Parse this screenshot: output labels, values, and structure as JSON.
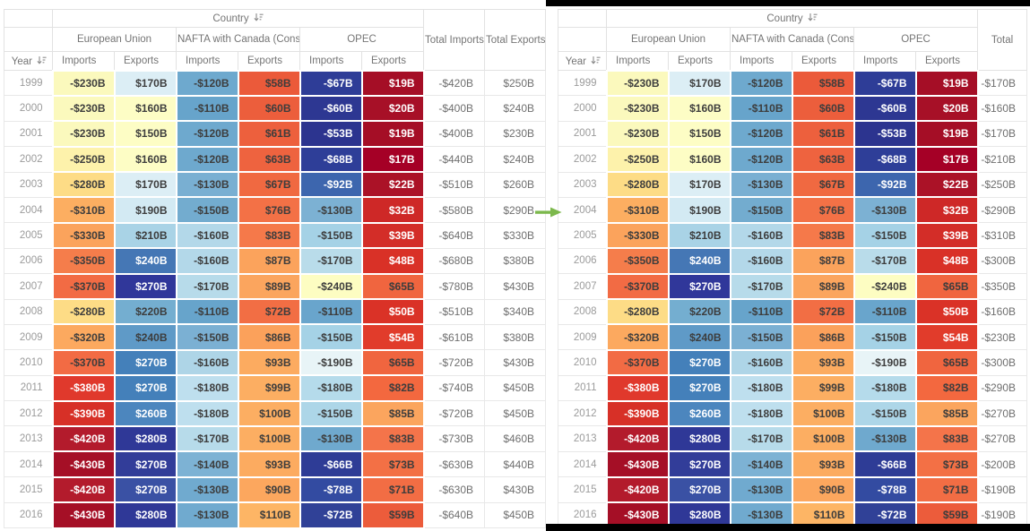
{
  "header": {
    "country_label": "Country",
    "year_label": "Year",
    "groups": [
      "European Union",
      "NAFTA with Canada (Consump)",
      "OPEC"
    ],
    "measures": [
      "Imports",
      "Exports"
    ],
    "left_total_columns": [
      "Total Imports",
      "Total Exports"
    ],
    "right_total_column": "Total"
  },
  "arrow_color": "#7cb84c",
  "rows": [
    {
      "year": "1999",
      "cells": [
        {
          "v": "-$230B",
          "bg": "#fbf9bd",
          "w": 0
        },
        {
          "v": "$170B",
          "bg": "#dceef5",
          "w": 0
        },
        {
          "v": "-$120B",
          "bg": "#6ea9ce",
          "w": 0
        },
        {
          "v": "$58B",
          "bg": "#eb5a3a",
          "w": 0
        },
        {
          "v": "-$67B",
          "bg": "#2e3d97",
          "w": 1
        },
        {
          "v": "$19B",
          "bg": "#a50e26",
          "w": 1
        }
      ],
      "left_totals": [
        "-$420B",
        "$250B"
      ],
      "right_total": "-$170B"
    },
    {
      "year": "2000",
      "cells": [
        {
          "v": "-$230B",
          "bg": "#fbf9bd",
          "w": 0
        },
        {
          "v": "$160B",
          "bg": "#fdfdc5",
          "w": 0
        },
        {
          "v": "-$110B",
          "bg": "#67a4cb",
          "w": 0
        },
        {
          "v": "$60B",
          "bg": "#ec5e3c",
          "w": 0
        },
        {
          "v": "-$60B",
          "bg": "#2d3792",
          "w": 1
        },
        {
          "v": "$20B",
          "bg": "#a71027",
          "w": 1
        }
      ],
      "left_totals": [
        "-$400B",
        "$240B"
      ],
      "right_total": "-$160B"
    },
    {
      "year": "2001",
      "cells": [
        {
          "v": "-$230B",
          "bg": "#fbf9bd",
          "w": 0
        },
        {
          "v": "$150B",
          "bg": "#fdfdc5",
          "w": 0
        },
        {
          "v": "-$120B",
          "bg": "#6ea9ce",
          "w": 0
        },
        {
          "v": "$61B",
          "bg": "#ed603d",
          "w": 0
        },
        {
          "v": "-$53B",
          "bg": "#2c348f",
          "w": 1
        },
        {
          "v": "$19B",
          "bg": "#a50e26",
          "w": 1
        }
      ],
      "left_totals": [
        "-$400B",
        "$230B"
      ],
      "right_total": "-$170B"
    },
    {
      "year": "2002",
      "cells": [
        {
          "v": "-$250B",
          "bg": "#fdf2ab",
          "w": 0
        },
        {
          "v": "$160B",
          "bg": "#fdfdc5",
          "w": 0
        },
        {
          "v": "-$120B",
          "bg": "#6ea9ce",
          "w": 0
        },
        {
          "v": "$63B",
          "bg": "#ee633f",
          "w": 0
        },
        {
          "v": "-$68B",
          "bg": "#2e3e98",
          "w": 1
        },
        {
          "v": "$17B",
          "bg": "#a50026",
          "w": 1
        }
      ],
      "left_totals": [
        "-$440B",
        "$240B"
      ],
      "right_total": "-$210B"
    },
    {
      "year": "2003",
      "cells": [
        {
          "v": "-$280B",
          "bg": "#fddc86",
          "w": 0
        },
        {
          "v": "$170B",
          "bg": "#dceef5",
          "w": 0
        },
        {
          "v": "-$130B",
          "bg": "#79afd2",
          "w": 0
        },
        {
          "v": "$67B",
          "bg": "#f06941",
          "w": 0
        },
        {
          "v": "-$92B",
          "bg": "#3d66ae",
          "w": 1
        },
        {
          "v": "$22B",
          "bg": "#ab1227",
          "w": 1
        }
      ],
      "left_totals": [
        "-$510B",
        "$260B"
      ],
      "right_total": "-$250B"
    },
    {
      "year": "2004",
      "cells": [
        {
          "v": "-$310B",
          "bg": "#fcae61",
          "w": 0
        },
        {
          "v": "$190B",
          "bg": "#d3eaf3",
          "w": 0
        },
        {
          "v": "-$150B",
          "bg": "#73accf",
          "w": 0
        },
        {
          "v": "$76B",
          "bg": "#f37146",
          "w": 0
        },
        {
          "v": "-$130B",
          "bg": "#7cb1d3",
          "w": 0
        },
        {
          "v": "$32B",
          "bg": "#ce2827",
          "w": 1
        }
      ],
      "left_totals": [
        "-$580B",
        "$290B"
      ],
      "right_total": "-$290B"
    },
    {
      "year": "2005",
      "cells": [
        {
          "v": "-$330B",
          "bg": "#fba35c",
          "w": 0
        },
        {
          "v": "$210B",
          "bg": "#a9d3e6",
          "w": 0
        },
        {
          "v": "-$160B",
          "bg": "#b3d8e9",
          "w": 0
        },
        {
          "v": "$83B",
          "bg": "#f5794a",
          "w": 0
        },
        {
          "v": "-$150B",
          "bg": "#a5d2e6",
          "w": 0
        },
        {
          "v": "$39B",
          "bg": "#d32d28",
          "w": 1
        }
      ],
      "left_totals": [
        "-$640B",
        "$330B"
      ],
      "right_total": "-$310B"
    },
    {
      "year": "2006",
      "cells": [
        {
          "v": "-$350B",
          "bg": "#f57d4b",
          "w": 0
        },
        {
          "v": "$240B",
          "bg": "#4577b5",
          "w": 1
        },
        {
          "v": "-$160B",
          "bg": "#b3d8e9",
          "w": 0
        },
        {
          "v": "$87B",
          "bg": "#fba35c",
          "w": 0
        },
        {
          "v": "-$170B",
          "bg": "#b9dcea",
          "w": 0
        },
        {
          "v": "$48B",
          "bg": "#d93127",
          "w": 1
        }
      ],
      "left_totals": [
        "-$680B",
        "$380B"
      ],
      "right_total": "-$300B"
    },
    {
      "year": "2007",
      "cells": [
        {
          "v": "-$370B",
          "bg": "#f26b44",
          "w": 0
        },
        {
          "v": "$270B",
          "bg": "#30379a",
          "w": 1
        },
        {
          "v": "-$170B",
          "bg": "#b7dbea",
          "w": 0
        },
        {
          "v": "$89B",
          "bg": "#fba55e",
          "w": 0
        },
        {
          "v": "-$240B",
          "bg": "#fdfdc2",
          "w": 0
        },
        {
          "v": "$65B",
          "bg": "#f0653f",
          "w": 0
        }
      ],
      "left_totals": [
        "-$780B",
        "$430B"
      ],
      "right_total": "-$350B"
    },
    {
      "year": "2008",
      "cells": [
        {
          "v": "-$280B",
          "bg": "#fddc86",
          "w": 0
        },
        {
          "v": "$220B",
          "bg": "#74aed0",
          "w": 0
        },
        {
          "v": "-$110B",
          "bg": "#67a4cb",
          "w": 0
        },
        {
          "v": "$72B",
          "bg": "#f26e44",
          "w": 0
        },
        {
          "v": "-$110B",
          "bg": "#69a5cc",
          "w": 0
        },
        {
          "v": "$50B",
          "bg": "#da3227",
          "w": 1
        }
      ],
      "left_totals": [
        "-$510B",
        "$340B"
      ],
      "right_total": "-$160B"
    },
    {
      "year": "2009",
      "cells": [
        {
          "v": "-$320B",
          "bg": "#fca95f",
          "w": 0
        },
        {
          "v": "$240B",
          "bg": "#5f9ac7",
          "w": 0
        },
        {
          "v": "-$150B",
          "bg": "#7bb0d3",
          "w": 0
        },
        {
          "v": "$86B",
          "bg": "#fba15b",
          "w": 0
        },
        {
          "v": "-$150B",
          "bg": "#a5d2e6",
          "w": 0
        },
        {
          "v": "$54B",
          "bg": "#e13c2b",
          "w": 1
        }
      ],
      "left_totals": [
        "-$610B",
        "$380B"
      ],
      "right_total": "-$230B"
    },
    {
      "year": "2010",
      "cells": [
        {
          "v": "-$370B",
          "bg": "#f26b44",
          "w": 0
        },
        {
          "v": "$270B",
          "bg": "#4480ba",
          "w": 1
        },
        {
          "v": "-$160B",
          "bg": "#aed5e7",
          "w": 0
        },
        {
          "v": "$93B",
          "bg": "#fcab60",
          "w": 0
        },
        {
          "v": "-$190B",
          "bg": "#e8f4f7",
          "w": 0
        },
        {
          "v": "$65B",
          "bg": "#f0653f",
          "w": 0
        }
      ],
      "left_totals": [
        "-$720B",
        "$430B"
      ],
      "right_total": "-$300B"
    },
    {
      "year": "2011",
      "cells": [
        {
          "v": "-$380B",
          "bg": "#e0392c",
          "w": 1
        },
        {
          "v": "$270B",
          "bg": "#4480ba",
          "w": 1
        },
        {
          "v": "-$180B",
          "bg": "#bedfee",
          "w": 0
        },
        {
          "v": "$99B",
          "bg": "#fcae62",
          "w": 0
        },
        {
          "v": "-$180B",
          "bg": "#b5dbeb",
          "w": 0
        },
        {
          "v": "$82B",
          "bg": "#f3683f",
          "w": 0
        }
      ],
      "left_totals": [
        "-$740B",
        "$450B"
      ],
      "right_total": "-$290B"
    },
    {
      "year": "2012",
      "cells": [
        {
          "v": "-$390B",
          "bg": "#d73027",
          "w": 1
        },
        {
          "v": "$260B",
          "bg": "#4c86be",
          "w": 1
        },
        {
          "v": "-$180B",
          "bg": "#bedfee",
          "w": 0
        },
        {
          "v": "$100B",
          "bg": "#fcae62",
          "w": 0
        },
        {
          "v": "-$150B",
          "bg": "#add6e8",
          "w": 0
        },
        {
          "v": "$85B",
          "bg": "#fba55e",
          "w": 0
        }
      ],
      "left_totals": [
        "-$720B",
        "$450B"
      ],
      "right_total": "-$270B"
    },
    {
      "year": "2013",
      "cells": [
        {
          "v": "-$420B",
          "bg": "#b31b2c",
          "w": 1
        },
        {
          "v": "$280B",
          "bg": "#2f3897",
          "w": 1
        },
        {
          "v": "-$170B",
          "bg": "#b7dbea",
          "w": 0
        },
        {
          "v": "$100B",
          "bg": "#fcae62",
          "w": 0
        },
        {
          "v": "-$130B",
          "bg": "#6fa9ce",
          "w": 0
        },
        {
          "v": "$83B",
          "bg": "#f4744a",
          "w": 0
        }
      ],
      "left_totals": [
        "-$730B",
        "$460B"
      ],
      "right_total": "-$270B"
    },
    {
      "year": "2014",
      "cells": [
        {
          "v": "-$430B",
          "bg": "#a50f26",
          "w": 1
        },
        {
          "v": "$270B",
          "bg": "#323d99",
          "w": 1
        },
        {
          "v": "-$140B",
          "bg": "#7db2d4",
          "w": 0
        },
        {
          "v": "$93B",
          "bg": "#fcab60",
          "w": 0
        },
        {
          "v": "-$66B",
          "bg": "#2e3c96",
          "w": 1
        },
        {
          "v": "$73B",
          "bg": "#f37045",
          "w": 0
        }
      ],
      "left_totals": [
        "-$630B",
        "$440B"
      ],
      "right_total": "-$200B"
    },
    {
      "year": "2015",
      "cells": [
        {
          "v": "-$420B",
          "bg": "#b31b2c",
          "w": 1
        },
        {
          "v": "$270B",
          "bg": "#3a51a4",
          "w": 1
        },
        {
          "v": "-$130B",
          "bg": "#70aacf",
          "w": 0
        },
        {
          "v": "$90B",
          "bg": "#fca75e",
          "w": 0
        },
        {
          "v": "-$78B",
          "bg": "#334ba1",
          "w": 1
        },
        {
          "v": "$71B",
          "bg": "#f26d44",
          "w": 0
        }
      ],
      "left_totals": [
        "-$630B",
        "$430B"
      ],
      "right_total": "-$190B"
    },
    {
      "year": "2016",
      "cells": [
        {
          "v": "-$430B",
          "bg": "#a50f26",
          "w": 1
        },
        {
          "v": "$280B",
          "bg": "#2f3897",
          "w": 1
        },
        {
          "v": "-$130B",
          "bg": "#70aacf",
          "w": 0
        },
        {
          "v": "$110B",
          "bg": "#fdb565",
          "w": 0
        },
        {
          "v": "-$72B",
          "bg": "#304197",
          "w": 1
        },
        {
          "v": "$59B",
          "bg": "#ec5c3b",
          "w": 0
        }
      ],
      "left_totals": [
        "-$640B",
        "$450B"
      ],
      "right_total": "-$190B"
    }
  ]
}
